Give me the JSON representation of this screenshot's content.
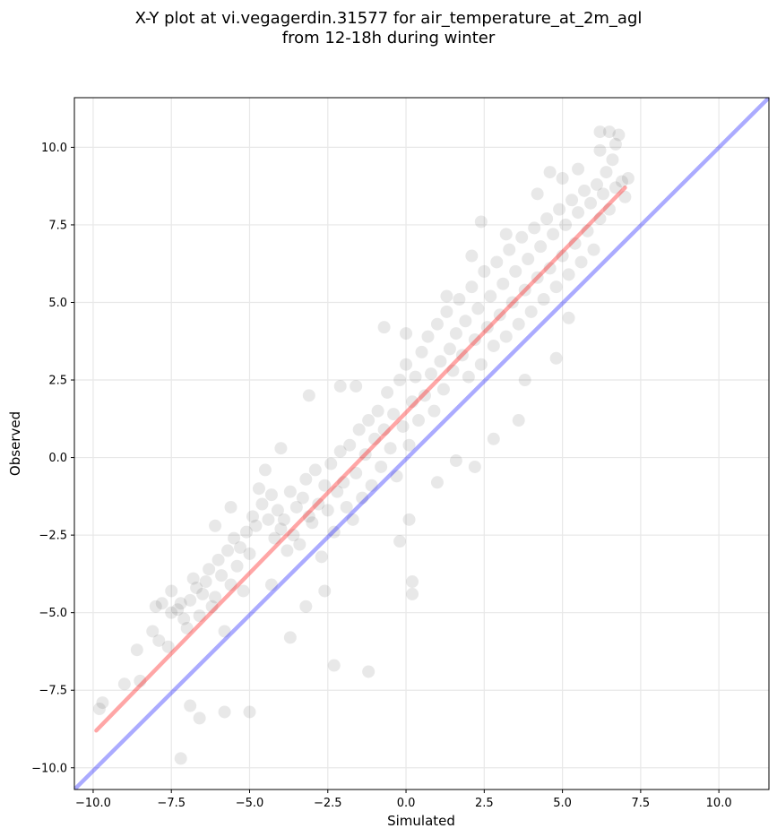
{
  "chart_data": {
    "type": "scatter",
    "title_line1": "X-Y plot at vi.vegagerdin.31577 for air_temperature_at_2m_agl",
    "title_line2": "from 12-18h during winter",
    "xlabel": "Simulated",
    "ylabel": "Observed",
    "xlim": [
      -10.6,
      11.6
    ],
    "ylim": [
      -10.7,
      11.6
    ],
    "xticks": [
      -10.0,
      -7.5,
      -5.0,
      -2.5,
      0.0,
      2.5,
      5.0,
      7.5,
      10.0
    ],
    "yticks": [
      -10.0,
      -7.5,
      -5.0,
      -2.5,
      0.0,
      2.5,
      5.0,
      7.5,
      10.0
    ],
    "xtick_labels": [
      "−10.0",
      "−7.5",
      "−5.0",
      "−2.5",
      "0.0",
      "2.5",
      "5.0",
      "7.5",
      "10.0"
    ],
    "ytick_labels": [
      "−10.0",
      "−7.5",
      "−5.0",
      "−2.5",
      "0.0",
      "2.5",
      "5.0",
      "7.5",
      "10.0"
    ],
    "grid": true,
    "point_color": "#000000",
    "point_alpha": 0.09,
    "series": [
      {
        "type": "scatter",
        "points": [
          [
            -9.8,
            -8.1
          ],
          [
            -9.7,
            -7.9
          ],
          [
            -9.0,
            -7.3
          ],
          [
            -8.6,
            -6.2
          ],
          [
            -8.1,
            -5.6
          ],
          [
            -8.0,
            -4.8
          ],
          [
            -7.9,
            -5.9
          ],
          [
            -7.6,
            -6.1
          ],
          [
            -7.5,
            -5.0
          ],
          [
            -7.3,
            -4.9
          ],
          [
            -7.2,
            -4.7
          ],
          [
            -7.1,
            -5.2
          ],
          [
            -7.0,
            -5.5
          ],
          [
            -6.9,
            -4.6
          ],
          [
            -6.8,
            -3.9
          ],
          [
            -6.7,
            -4.2
          ],
          [
            -6.6,
            -5.1
          ],
          [
            -6.5,
            -4.4
          ],
          [
            -6.4,
            -4.0
          ],
          [
            -6.3,
            -3.6
          ],
          [
            -6.2,
            -4.8
          ],
          [
            -6.1,
            -4.5
          ],
          [
            -6.0,
            -3.3
          ],
          [
            -5.9,
            -3.8
          ],
          [
            -5.8,
            -5.6
          ],
          [
            -5.7,
            -3.0
          ],
          [
            -5.6,
            -4.1
          ],
          [
            -5.5,
            -2.6
          ],
          [
            -5.4,
            -3.5
          ],
          [
            -5.3,
            -2.9
          ],
          [
            -5.2,
            -4.3
          ],
          [
            -5.1,
            -2.4
          ],
          [
            -5.0,
            -3.1
          ],
          [
            -4.9,
            -1.9
          ],
          [
            -4.8,
            -2.2
          ],
          [
            -4.7,
            -1.0
          ],
          [
            -4.6,
            -1.5
          ],
          [
            -4.5,
            -0.4
          ],
          [
            -4.4,
            -2.0
          ],
          [
            -4.3,
            -1.2
          ],
          [
            -4.2,
            -2.6
          ],
          [
            -4.1,
            -1.7
          ],
          [
            -4.0,
            -2.3
          ],
          [
            -3.9,
            -2.0
          ],
          [
            -3.8,
            -3.0
          ],
          [
            -3.7,
            -1.1
          ],
          [
            -3.6,
            -2.5
          ],
          [
            -3.5,
            -1.6
          ],
          [
            -3.4,
            -2.8
          ],
          [
            -3.3,
            -1.3
          ],
          [
            -3.2,
            -0.7
          ],
          [
            -3.1,
            -1.9
          ],
          [
            -3.0,
            -2.1
          ],
          [
            -2.9,
            -0.4
          ],
          [
            -2.8,
            -1.5
          ],
          [
            -2.7,
            -3.2
          ],
          [
            -2.6,
            -0.9
          ],
          [
            -2.5,
            -1.7
          ],
          [
            -2.4,
            -0.2
          ],
          [
            -2.3,
            -2.4
          ],
          [
            -2.2,
            -1.1
          ],
          [
            -2.1,
            0.2
          ],
          [
            -2.0,
            -0.8
          ],
          [
            -1.9,
            -1.6
          ],
          [
            -1.8,
            0.4
          ],
          [
            -1.7,
            -2.0
          ],
          [
            -1.6,
            -0.5
          ],
          [
            -1.5,
            0.9
          ],
          [
            -1.4,
            -1.3
          ],
          [
            -1.3,
            0.1
          ],
          [
            -1.2,
            1.2
          ],
          [
            -1.1,
            -0.9
          ],
          [
            -1.0,
            0.6
          ],
          [
            -0.9,
            1.5
          ],
          [
            -0.8,
            -0.3
          ],
          [
            -0.7,
            0.9
          ],
          [
            -0.6,
            2.1
          ],
          [
            -0.5,
            0.3
          ],
          [
            -0.4,
            1.4
          ],
          [
            -0.3,
            -0.6
          ],
          [
            -0.2,
            2.5
          ],
          [
            -0.1,
            1.0
          ],
          [
            0.0,
            3.0
          ],
          [
            0.1,
            0.4
          ],
          [
            0.2,
            1.8
          ],
          [
            0.3,
            2.6
          ],
          [
            0.4,
            1.2
          ],
          [
            0.5,
            3.4
          ],
          [
            0.6,
            2.0
          ],
          [
            0.7,
            3.9
          ],
          [
            0.8,
            2.7
          ],
          [
            0.9,
            1.5
          ],
          [
            1.0,
            4.3
          ],
          [
            1.1,
            3.1
          ],
          [
            1.2,
            2.2
          ],
          [
            1.3,
            4.7
          ],
          [
            1.4,
            3.5
          ],
          [
            1.5,
            2.8
          ],
          [
            1.6,
            4.0
          ],
          [
            1.7,
            5.1
          ],
          [
            1.8,
            3.3
          ],
          [
            1.9,
            4.4
          ],
          [
            2.0,
            2.6
          ],
          [
            2.1,
            5.5
          ],
          [
            2.2,
            3.8
          ],
          [
            2.3,
            4.8
          ],
          [
            2.4,
            3.0
          ],
          [
            2.5,
            6.0
          ],
          [
            2.6,
            4.2
          ],
          [
            2.7,
            5.2
          ],
          [
            2.8,
            3.6
          ],
          [
            2.9,
            6.3
          ],
          [
            3.0,
            4.6
          ],
          [
            3.1,
            5.6
          ],
          [
            3.2,
            3.9
          ],
          [
            3.3,
            6.7
          ],
          [
            3.4,
            5.0
          ],
          [
            3.5,
            6.0
          ],
          [
            3.6,
            4.3
          ],
          [
            3.7,
            7.1
          ],
          [
            3.8,
            5.4
          ],
          [
            3.9,
            6.4
          ],
          [
            4.0,
            4.7
          ],
          [
            4.1,
            7.4
          ],
          [
            4.2,
            5.8
          ],
          [
            4.3,
            6.8
          ],
          [
            4.4,
            5.1
          ],
          [
            4.5,
            7.7
          ],
          [
            4.6,
            6.1
          ],
          [
            4.7,
            7.2
          ],
          [
            4.8,
            5.5
          ],
          [
            4.9,
            8.0
          ],
          [
            5.0,
            6.5
          ],
          [
            5.1,
            7.5
          ],
          [
            5.2,
            5.9
          ],
          [
            5.3,
            8.3
          ],
          [
            5.4,
            6.9
          ],
          [
            5.5,
            7.9
          ],
          [
            5.6,
            6.3
          ],
          [
            5.7,
            8.6
          ],
          [
            5.8,
            7.3
          ],
          [
            5.9,
            8.2
          ],
          [
            6.0,
            6.7
          ],
          [
            6.1,
            8.8
          ],
          [
            6.2,
            7.7
          ],
          [
            6.3,
            8.5
          ],
          [
            6.4,
            9.2
          ],
          [
            6.5,
            8.0
          ],
          [
            6.6,
            9.6
          ],
          [
            6.7,
            8.7
          ],
          [
            6.8,
            10.4
          ],
          [
            6.9,
            8.9
          ],
          [
            7.0,
            8.4
          ],
          [
            6.5,
            10.5
          ],
          [
            6.2,
            9.9
          ],
          [
            5.2,
            4.5
          ],
          [
            4.8,
            3.2
          ],
          [
            3.8,
            2.5
          ],
          [
            3.6,
            1.2
          ],
          [
            2.8,
            0.6
          ],
          [
            2.2,
            -0.3
          ],
          [
            1.6,
            -0.1
          ],
          [
            1.0,
            -0.8
          ],
          [
            0.2,
            -4.0
          ],
          [
            0.2,
            -4.4
          ],
          [
            0.1,
            -2.0
          ],
          [
            -0.2,
            -2.7
          ],
          [
            -1.2,
            -6.9
          ],
          [
            -2.3,
            -6.7
          ],
          [
            -2.6,
            -4.3
          ],
          [
            -3.2,
            -4.8
          ],
          [
            -3.7,
            -5.8
          ],
          [
            -4.3,
            -4.1
          ],
          [
            -5.0,
            -8.2
          ],
          [
            -5.8,
            -8.2
          ],
          [
            -6.6,
            -8.4
          ],
          [
            -6.9,
            -8.0
          ],
          [
            -7.2,
            -9.7
          ],
          [
            -8.5,
            -7.2
          ],
          [
            -7.8,
            -4.7
          ],
          [
            -7.5,
            -4.3
          ],
          [
            -6.1,
            -2.2
          ],
          [
            -5.6,
            -1.6
          ],
          [
            -4.0,
            0.3
          ],
          [
            -3.1,
            2.0
          ],
          [
            -2.1,
            2.3
          ],
          [
            -1.6,
            2.3
          ],
          [
            -0.7,
            4.2
          ],
          [
            0.0,
            4.0
          ],
          [
            1.3,
            5.2
          ],
          [
            2.1,
            6.5
          ],
          [
            2.4,
            7.6
          ],
          [
            3.2,
            7.2
          ],
          [
            4.2,
            8.5
          ],
          [
            4.6,
            9.2
          ],
          [
            5.0,
            9.0
          ],
          [
            5.5,
            9.3
          ],
          [
            6.2,
            10.5
          ],
          [
            6.7,
            10.1
          ],
          [
            7.1,
            9.0
          ]
        ]
      }
    ],
    "reference_lines": [
      {
        "name": "",
        "color": "#ff0000",
        "alpha": 0.35,
        "from": [
          -9.9,
          -8.8
        ],
        "to": [
          7.0,
          8.7
        ]
      },
      {
        "name": "",
        "color": "#0000ff",
        "alpha": 0.33,
        "from": [
          -10.6,
          -10.7
        ],
        "to": [
          11.6,
          11.6
        ]
      }
    ]
  }
}
